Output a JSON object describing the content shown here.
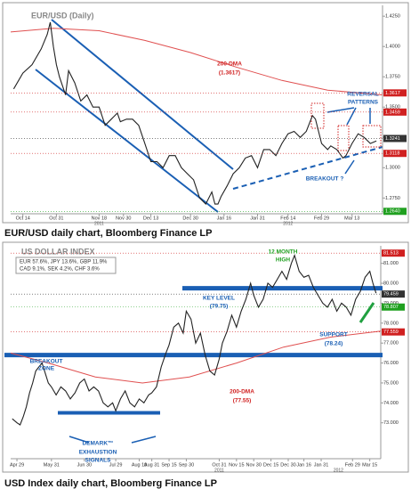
{
  "chart_data": [
    {
      "type": "line",
      "title": "EUR/USD (Daily)",
      "caption": "EUR/USD daily chart, Bloomberg Finance LP",
      "xlim": [
        -4,
        118
      ],
      "ylim": [
        1.262,
        1.431
      ],
      "xticks": [
        {
          "value": 0,
          "label": "Oct 14"
        },
        {
          "value": 11,
          "label": "Oct 31"
        },
        {
          "value": 25,
          "label": "Nov 18"
        },
        {
          "value": 33,
          "label": "Nov 30"
        },
        {
          "value": 42,
          "label": "Dec 13"
        },
        {
          "value": 55,
          "label": "Dec 30"
        },
        {
          "value": 66,
          "label": "Jan 16"
        },
        {
          "value": 77,
          "label": "Jan 31"
        },
        {
          "value": 87,
          "label": "Feb 14"
        },
        {
          "value": 98,
          "label": "Feb 29"
        },
        {
          "value": 108,
          "label": "Mar 13"
        }
      ],
      "years": [
        {
          "value": 25,
          "label": "2011"
        },
        {
          "value": 87,
          "label": "2012"
        }
      ],
      "yticks": [
        {
          "value": 1.425,
          "label": "1.4250"
        },
        {
          "value": 1.4,
          "label": "1.4000"
        },
        {
          "value": 1.375,
          "label": "1.3750"
        },
        {
          "value": 1.35,
          "label": "1.3500"
        },
        {
          "value": 1.325,
          "label": "1.3250"
        },
        {
          "value": 1.3,
          "label": "1.3000"
        },
        {
          "value": 1.275,
          "label": "1.2750"
        }
      ],
      "series": [
        {
          "name": "EUR/USD",
          "color": "#222222",
          "x": [
            -3,
            0,
            3,
            6,
            8,
            9,
            10,
            11,
            12,
            14,
            15,
            17,
            19,
            21,
            23,
            25,
            27,
            29,
            31,
            32,
            34,
            36,
            38,
            40,
            42,
            44,
            46,
            48,
            50,
            52,
            54,
            56,
            58,
            60,
            62,
            63,
            64,
            65,
            67,
            69,
            71,
            73,
            75,
            77,
            79,
            81,
            83,
            85,
            87,
            89,
            91,
            93,
            95,
            96,
            98,
            100,
            101,
            103,
            105,
            106,
            108,
            110,
            112,
            114,
            116
          ],
          "values": [
            1.365,
            1.378,
            1.385,
            1.398,
            1.41,
            1.42,
            1.4,
            1.385,
            1.375,
            1.36,
            1.38,
            1.37,
            1.355,
            1.36,
            1.35,
            1.35,
            1.335,
            1.34,
            1.345,
            1.338,
            1.34,
            1.34,
            1.335,
            1.32,
            1.305,
            1.305,
            1.3,
            1.31,
            1.31,
            1.3,
            1.295,
            1.29,
            1.275,
            1.27,
            1.28,
            1.27,
            1.27,
            1.276,
            1.285,
            1.295,
            1.3,
            1.308,
            1.31,
            1.3,
            1.315,
            1.315,
            1.31,
            1.32,
            1.328,
            1.33,
            1.325,
            1.33,
            1.343,
            1.34,
            1.32,
            1.315,
            1.318,
            1.315,
            1.308,
            1.31,
            1.32,
            1.328,
            1.325,
            1.32,
            1.322
          ]
        },
        {
          "name": "200-DMA",
          "color": "#e05050",
          "x": [
            -4,
            10,
            25,
            40,
            55,
            70,
            85,
            100,
            118
          ],
          "values": [
            1.412,
            1.415,
            1.413,
            1.405,
            1.395,
            1.383,
            1.372,
            1.364,
            1.36
          ]
        }
      ],
      "price_tags": [
        {
          "value": 1.3617,
          "label": "1.3617",
          "color": "#d02020"
        },
        {
          "value": 1.3459,
          "label": "1.3459",
          "color": "#d02020"
        },
        {
          "value": 1.3241,
          "label": "1.3241",
          "color": "#333333"
        },
        {
          "value": 1.3118,
          "label": "1.3118",
          "color": "#d02020"
        },
        {
          "value": 1.264,
          "label": "1.2640",
          "color": "#20a020"
        }
      ],
      "horizontal_lines": [],
      "annotations": [
        "200-DMA",
        "(1.3617)",
        "REVERSAL",
        "PATTERNS",
        "BREAKOUT ?"
      ]
    },
    {
      "type": "line",
      "title": "US DOLLAR INDEX",
      "caption": "USD Index daily chart, Bloomberg Finance LP",
      "legend_text": [
        "EUR 57.6%, JPY 13.6%, GBP 11.9%",
        "CAD 9.1%, SEK 4.2%, CHF 3.6%"
      ],
      "xlim": [
        -4,
        232
      ],
      "ylim": [
        71.2,
        81.7
      ],
      "xticks": [
        {
          "value": 0,
          "label": "Apr 29"
        },
        {
          "value": 22,
          "label": "May 31"
        },
        {
          "value": 43,
          "label": "Jun 30"
        },
        {
          "value": 63,
          "label": "Jul 29"
        },
        {
          "value": 78,
          "label": "Aug 19"
        },
        {
          "value": 86,
          "label": "Aug 31"
        },
        {
          "value": 97,
          "label": "Sep 15"
        },
        {
          "value": 108,
          "label": "Sep 30"
        },
        {
          "value": 129,
          "label": "Oct 31"
        },
        {
          "value": 140,
          "label": "Nov 15"
        },
        {
          "value": 151,
          "label": "Nov 30"
        },
        {
          "value": 162,
          "label": "Dec 15"
        },
        {
          "value": 173,
          "label": "Dec 30"
        },
        {
          "value": 183,
          "label": "Jan 16"
        },
        {
          "value": 194,
          "label": "Jan 31"
        },
        {
          "value": 214,
          "label": "Feb 29"
        },
        {
          "value": 225,
          "label": "Mar 15"
        }
      ],
      "years": [
        {
          "value": 129,
          "label": "2011"
        },
        {
          "value": 205,
          "label": "2012"
        }
      ],
      "yticks": [
        {
          "value": 81,
          "label": "81.000"
        },
        {
          "value": 80,
          "label": "80.000"
        },
        {
          "value": 79,
          "label": "79.000"
        },
        {
          "value": 78,
          "label": "78.000"
        },
        {
          "value": 77,
          "label": "77.000"
        },
        {
          "value": 76,
          "label": "76.000"
        },
        {
          "value": 75,
          "label": "75.000"
        },
        {
          "value": 74,
          "label": "74.000"
        },
        {
          "value": 73,
          "label": "73.000"
        }
      ],
      "series": [
        {
          "name": "USD Index",
          "color": "#222222",
          "x": [
            -3,
            0,
            2,
            4,
            6,
            8,
            10,
            12,
            14,
            16,
            18,
            20,
            22,
            25,
            28,
            31,
            34,
            37,
            40,
            43,
            46,
            49,
            52,
            55,
            58,
            61,
            63,
            66,
            69,
            72,
            75,
            78,
            81,
            84,
            86,
            89,
            92,
            95,
            97,
            100,
            103,
            106,
            108,
            111,
            114,
            117,
            120,
            123,
            126,
            129,
            131,
            134,
            137,
            140,
            143,
            146,
            149,
            151,
            154,
            157,
            160,
            163,
            166,
            169,
            172,
            175,
            177,
            180,
            183,
            186,
            189,
            192,
            195,
            198,
            201,
            204,
            207,
            210,
            213,
            216,
            219,
            222,
            225,
            227,
            229
          ],
          "values": [
            73.2,
            73,
            72.9,
            73.3,
            73.8,
            74.5,
            75,
            75.6,
            75.8,
            76,
            75.5,
            75,
            74.8,
            74.4,
            74.8,
            74.6,
            74.2,
            74.5,
            75,
            75.2,
            74.6,
            74.8,
            74.6,
            74,
            73.8,
            74,
            73.6,
            74.2,
            74.6,
            74,
            73.8,
            74.2,
            74,
            74.4,
            74.5,
            74.8,
            75.8,
            76.5,
            76.9,
            77.8,
            78,
            77.5,
            78.6,
            78.2,
            77,
            77.5,
            76.4,
            75.6,
            75.4,
            76.2,
            77,
            77.6,
            78.4,
            77.8,
            78.6,
            79.2,
            80,
            79.4,
            78.8,
            79.2,
            80,
            79.8,
            80.2,
            80.6,
            80.2,
            81,
            81.4,
            80.6,
            80.3,
            80.4,
            79.8,
            79.4,
            79,
            78.8,
            79.2,
            78.6,
            79,
            78.8,
            78.4,
            79.2,
            79.6,
            80.3,
            80.6,
            80,
            79.5
          ]
        },
        {
          "name": "200-DMA",
          "color": "#e05050",
          "x": [
            -4,
            20,
            50,
            80,
            110,
            140,
            170,
            200,
            232
          ],
          "values": [
            76.5,
            76,
            75.3,
            75,
            75.3,
            76,
            76.8,
            77.3,
            77.6
          ]
        }
      ],
      "price_tags": [
        {
          "value": 81.513,
          "label": "81.513",
          "color": "#d02020"
        },
        {
          "value": 79.459,
          "label": "79.459",
          "color": "#333333"
        },
        {
          "value": 78.807,
          "label": "78.807",
          "color": "#20a020"
        },
        {
          "value": 77.559,
          "label": "77.559",
          "color": "#d02020"
        }
      ],
      "horizontal_lines": [
        79.75,
        76.4,
        73.5
      ],
      "annotations": [
        "12 MONTH",
        "HIGH",
        "KEY LEVEL",
        "(79.75)",
        "SUPPORT",
        "(78.24)",
        "BREAKOUT",
        "ZONE",
        "200-DMA",
        "(77.55)",
        "DEMARK™",
        "EXHAUSTION",
        "SIGNALS"
      ]
    }
  ]
}
